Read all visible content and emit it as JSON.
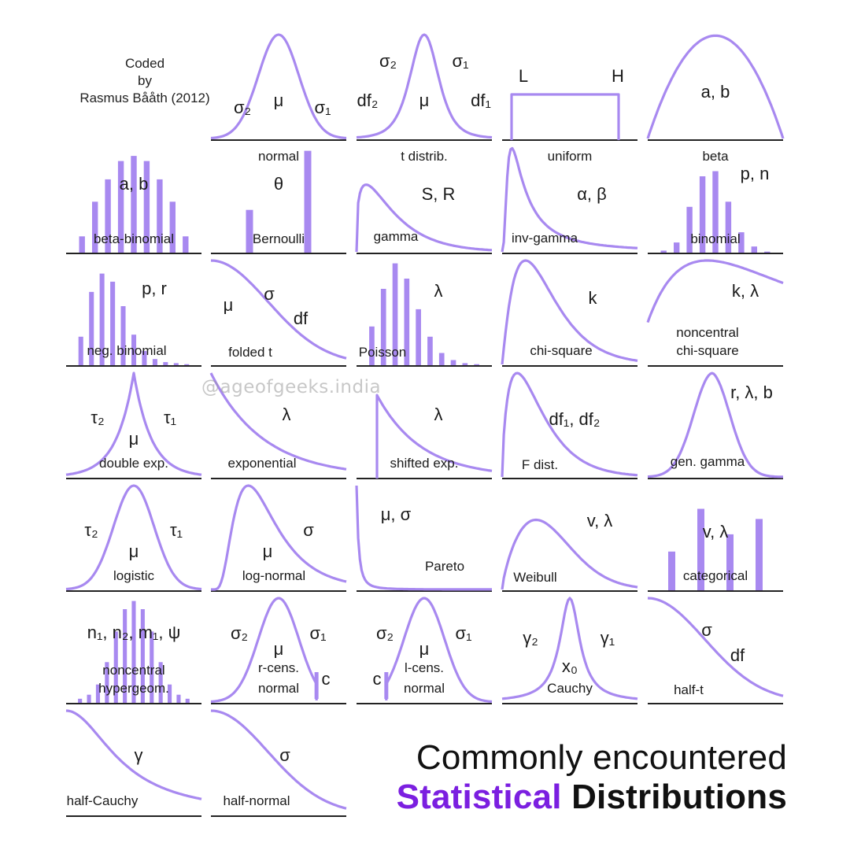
{
  "credit": {
    "line1": "Coded",
    "line2": "by",
    "line3": "Rasmus Bååth (2012)"
  },
  "watermark": "@ageofgeeks.india",
  "title": {
    "line1": "Commonly encountered",
    "accent": "Statistical",
    "rest": "Distributions"
  },
  "colors": {
    "curve": "#a889f0",
    "bar": "#a889f0",
    "bar_light": "#cfc0f7",
    "axis": "#222222",
    "accent": "#7b1fe0"
  },
  "panels": [
    {
      "id": "normal",
      "name": "normal",
      "kind": "curve",
      "shape": "normal",
      "params": [
        "σ₂",
        "μ",
        "σ₁"
      ]
    },
    {
      "id": "t-distrib",
      "name": "t distrib.",
      "kind": "curve",
      "shape": "tdist",
      "params": [
        "σ₂",
        "σ₁",
        "df₂",
        "μ",
        "df₁"
      ]
    },
    {
      "id": "uniform",
      "name": "uniform",
      "kind": "curve",
      "shape": "uniform",
      "params": [
        "L",
        "H"
      ]
    },
    {
      "id": "beta",
      "name": "beta",
      "kind": "curve",
      "shape": "beta",
      "params": [
        "a, b"
      ]
    },
    {
      "id": "beta-binomial",
      "name": "beta-binomial",
      "kind": "bars",
      "values": [
        0.16,
        0.5,
        0.72,
        0.9,
        0.95,
        0.9,
        0.72,
        0.5,
        0.16
      ],
      "params": [
        "a, b"
      ]
    },
    {
      "id": "bernoulli",
      "name": "Bernoulli",
      "kind": "bars",
      "values": [
        0.42,
        1.0
      ],
      "params": [
        "θ"
      ]
    },
    {
      "id": "gamma",
      "name": "gamma",
      "kind": "curve",
      "shape": "gamma",
      "params": [
        "S, R"
      ]
    },
    {
      "id": "inv-gamma",
      "name": "inv-gamma",
      "kind": "curve",
      "shape": "invgamma",
      "params": [
        "α, β"
      ]
    },
    {
      "id": "binomial",
      "name": "binomial",
      "kind": "bars",
      "values": [
        0.02,
        0.1,
        0.45,
        0.75,
        0.8,
        0.5,
        0.2,
        0.06,
        0.01
      ],
      "params": [
        "p, n"
      ]
    },
    {
      "id": "neg-binomial",
      "name": "neg. binomial",
      "kind": "bars",
      "values": [
        0.28,
        0.72,
        0.9,
        0.82,
        0.58,
        0.3,
        0.14,
        0.06,
        0.03,
        0.02,
        0.01
      ],
      "params": [
        "p, r"
      ]
    },
    {
      "id": "folded-t",
      "name": "folded t",
      "kind": "curve",
      "shape": "halfnormal",
      "params": [
        "μ",
        "σ",
        "df"
      ]
    },
    {
      "id": "poisson",
      "name": "Poisson",
      "kind": "bars",
      "values": [
        0.38,
        0.75,
        1.0,
        0.85,
        0.55,
        0.28,
        0.12,
        0.05,
        0.02,
        0.01
      ],
      "params": [
        "λ"
      ]
    },
    {
      "id": "chi-square",
      "name": "chi-square",
      "kind": "curve",
      "shape": "chisq",
      "params": [
        "k"
      ]
    },
    {
      "id": "noncentral-chi-square",
      "name": "noncentral",
      "name2": "chi-square",
      "kind": "curve",
      "shape": "ncchisq",
      "params": [
        "k, λ"
      ]
    },
    {
      "id": "double-exp",
      "name": "double exp.",
      "kind": "curve",
      "shape": "laplace",
      "params": [
        "τ₂",
        "τ₁",
        "μ"
      ]
    },
    {
      "id": "exponential",
      "name": "exponential",
      "kind": "curve",
      "shape": "exponential",
      "params": [
        "λ"
      ]
    },
    {
      "id": "shifted-exp",
      "name": "shifted exp.",
      "kind": "curve",
      "shape": "shiftedexp",
      "params": [
        "λ"
      ]
    },
    {
      "id": "f-dist",
      "name": "F dist.",
      "kind": "curve",
      "shape": "fdist",
      "params": [
        "df₁, df₂"
      ]
    },
    {
      "id": "gen-gamma",
      "name": "gen. gamma",
      "kind": "curve",
      "shape": "gengamma",
      "params": [
        "r, λ, b"
      ]
    },
    {
      "id": "logistic",
      "name": "logistic",
      "kind": "curve",
      "shape": "normal",
      "params": [
        "τ₂",
        "τ₁",
        "μ"
      ]
    },
    {
      "id": "log-normal",
      "name": "log-normal",
      "kind": "curve",
      "shape": "lognormal",
      "params": [
        "μ",
        "σ"
      ]
    },
    {
      "id": "pareto",
      "name": "Pareto",
      "kind": "curve",
      "shape": "pareto",
      "params": [
        "μ, σ"
      ]
    },
    {
      "id": "weibull",
      "name": "Weibull",
      "kind": "curve",
      "shape": "weibull",
      "params": [
        "v, λ"
      ]
    },
    {
      "id": "categorical",
      "name": "categorical",
      "kind": "bars",
      "values": [
        0.38,
        0.8,
        0.55,
        0.7
      ],
      "params": [
        "v, λ"
      ]
    },
    {
      "id": "noncentral-hypergeom",
      "name": "noncentral",
      "name2": "hypergeom.",
      "kind": "bars",
      "values": [
        0.04,
        0.08,
        0.18,
        0.4,
        0.7,
        0.92,
        1.0,
        0.92,
        0.7,
        0.4,
        0.18,
        0.08,
        0.04
      ],
      "params": [
        "n₁, n₂, m₁, ψ"
      ]
    },
    {
      "id": "r-cens-normal",
      "name": "r-cens.",
      "name2": "normal",
      "kind": "curve",
      "shape": "rcens",
      "params": [
        "σ₂",
        "μ",
        "σ₁",
        "c"
      ]
    },
    {
      "id": "l-cens-normal",
      "name": "l-cens.",
      "name2": "normal",
      "kind": "curve",
      "shape": "lcens",
      "params": [
        "σ₂",
        "μ",
        "σ₁",
        "c"
      ]
    },
    {
      "id": "cauchy",
      "name": "Cauchy",
      "kind": "curve",
      "shape": "cauchy",
      "params": [
        "γ₂",
        "γ₁",
        "x₀"
      ]
    },
    {
      "id": "half-t",
      "name": "half-t",
      "kind": "curve",
      "shape": "halfnormal",
      "params": [
        "σ",
        "df"
      ]
    },
    {
      "id": "half-cauchy",
      "name": "half-Cauchy",
      "kind": "curve",
      "shape": "halfcauchy",
      "params": [
        "γ"
      ]
    },
    {
      "id": "half-normal",
      "name": "half-normal",
      "kind": "curve",
      "shape": "halfnormal",
      "params": [
        "σ"
      ]
    }
  ]
}
